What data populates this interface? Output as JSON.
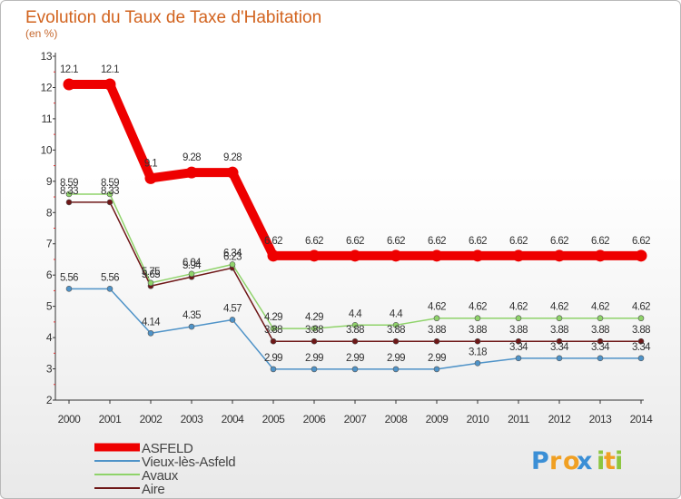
{
  "chart_data": {
    "type": "line",
    "title": "Evolution du Taux de Taxe d'Habitation",
    "subtitle": "(en %)",
    "xlabel": "",
    "ylabel": "",
    "ylim": [
      2,
      13
    ],
    "yticks": [
      "2",
      "3",
      "4",
      "5",
      "6",
      "7",
      "8",
      "9",
      "10",
      "11",
      "12",
      "13"
    ],
    "categories": [
      "2000",
      "2001",
      "2002",
      "2003",
      "2004",
      "2005",
      "2006",
      "2007",
      "2008",
      "2009",
      "2010",
      "2011",
      "2012",
      "2013",
      "2014"
    ],
    "grid": false,
    "legend_position": "bottom-left",
    "series": [
      {
        "name": "ASFELD",
        "color": "#ee0000",
        "values": [
          12.1,
          12.1,
          9.1,
          9.28,
          9.28,
          6.62,
          6.62,
          6.62,
          6.62,
          6.62,
          6.62,
          6.62,
          6.62,
          6.62,
          6.62
        ],
        "labels": [
          "12.1",
          "12.1",
          "9.1",
          "9.28",
          "9.28",
          "6.62",
          "6.62",
          "6.62",
          "6.62",
          "6.62",
          "6.62",
          "6.62",
          "6.62",
          "6.62",
          "6.62"
        ]
      },
      {
        "name": "Vieux-lès-Asfeld",
        "color": "#4f93c8",
        "values": [
          5.56,
          5.56,
          4.14,
          4.35,
          4.57,
          2.99,
          2.99,
          2.99,
          2.99,
          2.99,
          3.18,
          3.34,
          3.34,
          3.34,
          3.34
        ],
        "labels": [
          "5.56",
          "5.56",
          "4.14",
          "4.35",
          "4.57",
          "2.99",
          "2.99",
          "2.99",
          "2.99",
          "2.99",
          "3.18",
          "3.34",
          "3.34",
          "3.34",
          "3.34"
        ]
      },
      {
        "name": "Avaux",
        "color": "#8fd36a",
        "values": [
          8.59,
          8.59,
          5.75,
          6.04,
          6.34,
          4.29,
          4.29,
          4.4,
          4.4,
          4.62,
          4.62,
          4.62,
          4.62,
          4.62,
          4.62
        ],
        "labels": [
          "8.59",
          "8.59",
          "5.75",
          "6.04",
          "6.34",
          "4.29",
          "4.29",
          "4.4",
          "4.4",
          "4.62",
          "4.62",
          "4.62",
          "4.62",
          "4.62",
          "4.62"
        ]
      },
      {
        "name": "Aire",
        "color": "#6e1717",
        "values": [
          8.33,
          8.33,
          5.65,
          5.94,
          6.23,
          3.88,
          3.88,
          3.88,
          3.88,
          3.88,
          3.88,
          3.88,
          3.88,
          3.88,
          3.88
        ],
        "labels": [
          "8.33",
          "8.33",
          "5.65",
          "5.94",
          "6.23",
          "3.88",
          "3.88",
          "3.88",
          "3.88",
          "3.88",
          "3.88",
          "3.88",
          "3.88",
          "3.88",
          "3.88"
        ]
      }
    ]
  },
  "logo": {
    "letters": [
      "P",
      "r",
      "o",
      "x",
      "i",
      "t",
      "i"
    ],
    "colors": [
      "#3b8fd6",
      "#f0a023",
      "#f0a023",
      "#3b8fd6",
      "#8cc63f",
      "#f0a023",
      "#8cc63f"
    ]
  }
}
